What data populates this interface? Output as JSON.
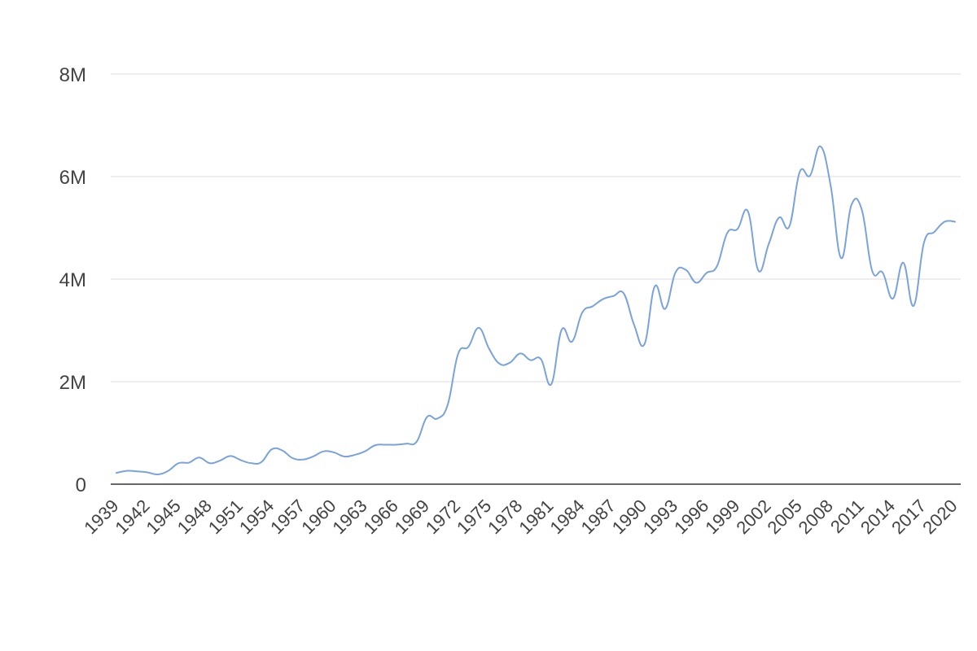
{
  "chart_data": {
    "type": "line",
    "title": "",
    "xlabel": "",
    "ylabel": "",
    "ylim": [
      0,
      8000000
    ],
    "xlim": [
      1939,
      2020
    ],
    "grid": true,
    "legend": "none",
    "y_ticks": [
      {
        "value": 0,
        "label": "0"
      },
      {
        "value": 2000000,
        "label": "2M"
      },
      {
        "value": 4000000,
        "label": "4M"
      },
      {
        "value": 6000000,
        "label": "6M"
      },
      {
        "value": 8000000,
        "label": "8M"
      }
    ],
    "x_ticks": [
      {
        "value": 1939,
        "label": "1939"
      },
      {
        "value": 1942,
        "label": "1942"
      },
      {
        "value": 1945,
        "label": "1945"
      },
      {
        "value": 1948,
        "label": "1948"
      },
      {
        "value": 1951,
        "label": "1951"
      },
      {
        "value": 1954,
        "label": "1954"
      },
      {
        "value": 1957,
        "label": "1957"
      },
      {
        "value": 1960,
        "label": "1960"
      },
      {
        "value": 1963,
        "label": "1963"
      },
      {
        "value": 1966,
        "label": "1966"
      },
      {
        "value": 1969,
        "label": "1969"
      },
      {
        "value": 1972,
        "label": "1972"
      },
      {
        "value": 1975,
        "label": "1975"
      },
      {
        "value": 1978,
        "label": "1978"
      },
      {
        "value": 1981,
        "label": "1981"
      },
      {
        "value": 1984,
        "label": "1984"
      },
      {
        "value": 1987,
        "label": "1987"
      },
      {
        "value": 1990,
        "label": "1990"
      },
      {
        "value": 1993,
        "label": "1993"
      },
      {
        "value": 1996,
        "label": "1996"
      },
      {
        "value": 1999,
        "label": "1999"
      },
      {
        "value": 2002,
        "label": "2002"
      },
      {
        "value": 2005,
        "label": "2005"
      },
      {
        "value": 2008,
        "label": "2008"
      },
      {
        "value": 2011,
        "label": "2011"
      },
      {
        "value": 2014,
        "label": "2014"
      },
      {
        "value": 2017,
        "label": "2017"
      },
      {
        "value": 2020,
        "label": "2020"
      }
    ],
    "colors": {
      "series": "#7aa3dc",
      "grid": "#dcdcdc",
      "axis": "#333333",
      "text": "#444444"
    },
    "series": [
      {
        "x": [
          1939,
          1940,
          1941,
          1942,
          1943,
          1944,
          1945,
          1946,
          1947,
          1948,
          1949,
          1950,
          1951,
          1952,
          1953,
          1954,
          1955,
          1956,
          1957,
          1958,
          1959,
          1960,
          1961,
          1962,
          1963,
          1964,
          1965,
          1966,
          1967,
          1968,
          1969,
          1970,
          1971,
          1972,
          1973,
          1974,
          1975,
          1976,
          1977,
          1978,
          1979,
          1980,
          1981,
          1982,
          1983,
          1984,
          1985,
          1986,
          1987,
          1988,
          1989,
          1990,
          1991,
          1992,
          1993,
          1994,
          1995,
          1996,
          1997,
          1998,
          1999,
          2000,
          2001,
          2002,
          2003,
          2004,
          2005,
          2006,
          2007,
          2008,
          2009,
          2010,
          2011,
          2012,
          2013,
          2014,
          2015,
          2016,
          2017,
          2018,
          2019,
          2020
        ],
        "values": [
          220000,
          260000,
          250000,
          230000,
          190000,
          260000,
          410000,
          420000,
          520000,
          410000,
          460000,
          550000,
          470000,
          410000,
          430000,
          680000,
          660000,
          510000,
          480000,
          540000,
          640000,
          620000,
          540000,
          570000,
          640000,
          760000,
          770000,
          770000,
          790000,
          830000,
          1310000,
          1280000,
          1550000,
          2540000,
          2680000,
          3050000,
          2640000,
          2350000,
          2370000,
          2550000,
          2420000,
          2440000,
          1950000,
          3010000,
          2780000,
          3350000,
          3470000,
          3610000,
          3670000,
          3720000,
          3110000,
          2730000,
          3860000,
          3420000,
          4130000,
          4180000,
          3930000,
          4120000,
          4250000,
          4900000,
          4980000,
          5320000,
          4170000,
          4680000,
          5200000,
          5030000,
          6090000,
          6020000,
          6590000,
          5810000,
          4410000,
          5450000,
          5350000,
          4160000,
          4130000,
          3620000,
          4320000,
          3480000,
          4710000,
          4920000,
          5120000,
          5120000
        ]
      }
    ]
  }
}
